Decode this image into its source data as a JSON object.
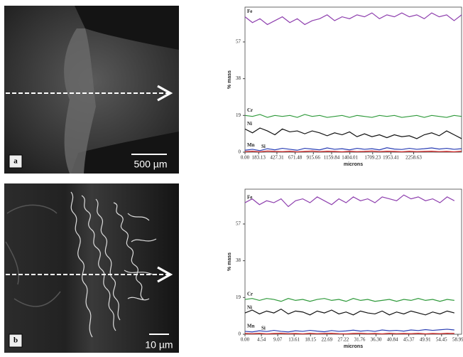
{
  "panels": [
    {
      "label": "a",
      "scale_bar": "500 µm"
    },
    {
      "label": "b",
      "scale_bar": "10 µm"
    }
  ],
  "chart_data": [
    {
      "type": "line",
      "y_label": "% mass",
      "x_label": "microns",
      "x": [
        0,
        100,
        200,
        300,
        400,
        500,
        600,
        700,
        800,
        900,
        1000,
        1100,
        1200,
        1300,
        1400,
        1500,
        1600,
        1700,
        1800,
        1900,
        2000,
        2100,
        2200,
        2300,
        2400,
        2500,
        2600,
        2700,
        2800,
        2900
      ],
      "xlim": [
        0,
        2900
      ],
      "xticks": [
        {
          "value": 0,
          "label": "0.00"
        },
        183.13,
        427.31,
        671.48,
        915.66,
        1159.84,
        1404.01,
        1709.23,
        1953.41,
        2258.63
      ],
      "ylim": [
        0,
        75
      ],
      "yticks": [
        0,
        19,
        38,
        57
      ],
      "series": [
        {
          "name": "Fe",
          "color": "#8e3fae",
          "values": [
            70,
            67,
            69,
            66,
            68,
            70,
            67,
            69,
            66,
            68,
            69,
            71,
            68,
            70,
            69,
            71,
            70,
            72,
            69,
            71,
            70,
            72,
            70,
            71,
            69,
            72,
            70,
            71,
            68,
            71
          ]
        },
        {
          "name": "Cr",
          "color": "#2f9a3b",
          "values": [
            19,
            18.5,
            19.5,
            18,
            19,
            18.5,
            19,
            18,
            19.5,
            18.5,
            19,
            18,
            18.5,
            19,
            18,
            19,
            18.5,
            18,
            19,
            18.5,
            19,
            18,
            18.5,
            19,
            18,
            19,
            18.5,
            18,
            19,
            18.5
          ]
        },
        {
          "name": "Ni",
          "color": "#111111",
          "values": [
            12,
            10,
            12.5,
            11,
            9,
            12,
            10.5,
            11,
            9.5,
            11,
            10,
            8.5,
            10,
            9,
            10.5,
            8,
            9.5,
            8,
            9,
            7.5,
            9,
            8,
            8.5,
            7,
            9,
            10,
            8.5,
            11,
            9,
            7
          ]
        },
        {
          "name": "Mn",
          "color": "#2a3db3",
          "values": [
            1,
            1.5,
            0.8,
            1.8,
            1.2,
            2,
            1.5,
            1,
            2,
            1.6,
            1.2,
            2.2,
            1.5,
            1.8,
            1.2,
            2,
            1.5,
            1.8,
            1.2,
            2.3,
            1.6,
            1.4,
            2,
            1.5,
            1.8,
            2.2,
            1.6,
            2,
            1.5,
            1.8
          ]
        },
        {
          "name": "Si",
          "color": "#d42020",
          "values": [
            0.3,
            0.5,
            0.2,
            0.6,
            0.4,
            0.3,
            0.5,
            0.2,
            0.4,
            0.6,
            0.3,
            0.5,
            0.4,
            0.2,
            0.5,
            0.3,
            0.4,
            0.6,
            0.3,
            0.5,
            0.4,
            0.2,
            0.5,
            0.3,
            0.4,
            0.5,
            0.3,
            0.4,
            0.2,
            0.5
          ]
        }
      ]
    },
    {
      "type": "line",
      "y_label": "% mass",
      "x_label": "microns",
      "x": [
        0,
        2,
        4,
        6,
        8,
        10,
        12,
        14,
        16,
        18,
        20,
        22,
        24,
        26,
        28,
        30,
        32,
        34,
        36,
        38,
        40,
        42,
        44,
        46,
        48,
        50,
        52,
        54,
        56,
        58
      ],
      "xlim": [
        0,
        60
      ],
      "xticks": [
        {
          "value": 0,
          "label": "0.00"
        },
        4.54,
        9.07,
        13.61,
        18.15,
        22.69,
        27.22,
        31.76,
        {
          "value": 36.3,
          "label": "36.30"
        },
        40.84,
        45.37,
        49.91,
        54.45,
        58.99
      ],
      "ylim": [
        0,
        75
      ],
      "yticks": [
        0,
        19,
        38,
        57
      ],
      "series": [
        {
          "name": "Fe",
          "color": "#8e3fae",
          "values": [
            68,
            70,
            67,
            69,
            68,
            70,
            66,
            69,
            70,
            68,
            71,
            69,
            67,
            70,
            68,
            71,
            69,
            70,
            68,
            71,
            70,
            69,
            72,
            70,
            71,
            69,
            70,
            68,
            71,
            69
          ]
        },
        {
          "name": "Cr",
          "color": "#2f9a3b",
          "values": [
            18,
            18.5,
            17.5,
            18.5,
            18,
            17,
            18.5,
            17.5,
            18,
            17,
            18,
            18.5,
            17.5,
            18,
            17,
            18.5,
            17.5,
            18,
            17,
            17.5,
            18,
            17,
            18,
            17.5,
            18.5,
            17.5,
            18,
            17,
            18,
            17.5
          ]
        },
        {
          "name": "Ni",
          "color": "#111111",
          "values": [
            11,
            12.5,
            10.5,
            12,
            11,
            13,
            10.5,
            12,
            11.5,
            10,
            12,
            11,
            12.5,
            10.5,
            11.5,
            10,
            12,
            11,
            10.5,
            12,
            10,
            11.5,
            10.5,
            12,
            11,
            10,
            11.5,
            10.5,
            12,
            11
          ]
        },
        {
          "name": "Mn",
          "color": "#2a3db3",
          "values": [
            1.5,
            1.2,
            1.8,
            1.4,
            2,
            1.5,
            1.2,
            1.8,
            1.5,
            2,
            1.6,
            1.3,
            1.9,
            1.5,
            1.7,
            2.1,
            1.6,
            1.9,
            1.5,
            2.2,
            1.8,
            2,
            1.6,
            2.2,
            1.9,
            2.4,
            2,
            2.3,
            2.6,
            2.2
          ]
        },
        {
          "name": "Si",
          "color": "#d42020",
          "values": [
            0.4,
            0.3,
            0.5,
            0.2,
            0.4,
            0.5,
            0.3,
            0.4,
            0.2,
            0.5,
            0.3,
            0.4,
            0.5,
            0.3,
            0.2,
            0.4,
            0.5,
            0.3,
            0.4,
            0.2,
            0.5,
            0.3,
            0.4,
            0.3,
            0.5,
            0.2,
            0.4,
            0.3,
            0.5,
            0.4
          ]
        }
      ]
    }
  ]
}
